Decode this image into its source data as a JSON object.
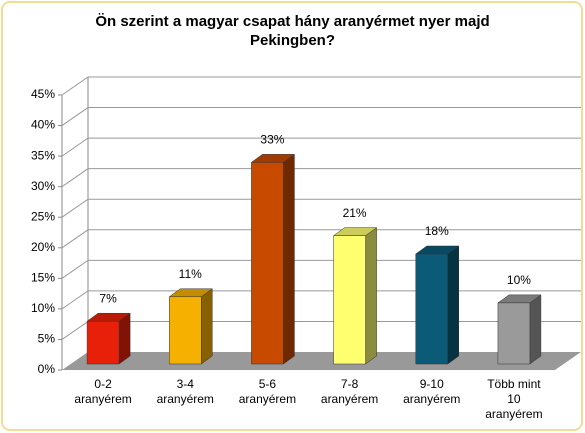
{
  "chart_data": {
    "type": "bar3d",
    "title": "Ön szerint a magyar csapat hány aranyérmet nyer majd Pekingben?",
    "categories": [
      "0-2 aranyérem",
      "3-4 aranyérem",
      "5-6 aranyérem",
      "7-8 aranyérem",
      "9-10 aranyérem",
      "Több mint 10 aranyérem"
    ],
    "values": [
      7,
      11,
      33,
      21,
      18,
      10
    ],
    "value_labels": [
      "7%",
      "11%",
      "33%",
      "21%",
      "18%",
      "10%"
    ],
    "colors": [
      "#e8200a",
      "#f5b000",
      "#c84a00",
      "#ffff70",
      "#0a5a78",
      "#9a9a9a"
    ],
    "ylim": [
      0,
      45
    ],
    "yticks": [
      {
        "value": 0,
        "label": "0%"
      },
      {
        "value": 5,
        "label": "5%"
      },
      {
        "value": 10,
        "label": "10%"
      },
      {
        "value": 15,
        "label": "15%"
      },
      {
        "value": 20,
        "label": "20%"
      },
      {
        "value": 25,
        "label": "25%"
      },
      {
        "value": 30,
        "label": "30%"
      },
      {
        "value": 35,
        "label": "35%"
      },
      {
        "value": 40,
        "label": "40%"
      },
      {
        "value": 45,
        "label": "45%"
      }
    ],
    "grid": true
  }
}
